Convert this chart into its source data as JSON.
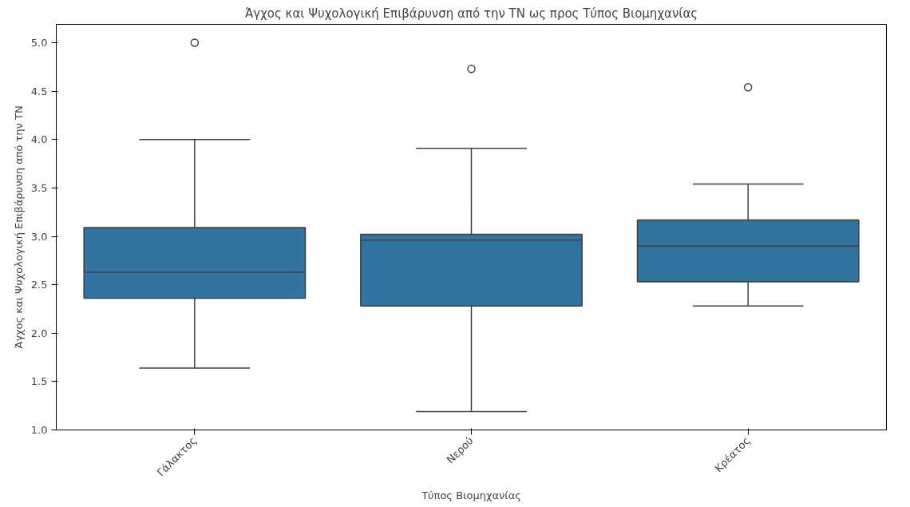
{
  "chart_data": {
    "type": "box",
    "title": "Άγχος και Ψυχολογική Επιβάρυνση από την ΤΝ ως προς Τύπος Βιομηχανίας",
    "xlabel": "Τύπος Βιομηχανίας",
    "ylabel": "Άγχος και Ψυχολογική Επιβάρυνση από την ΤΝ",
    "categories": [
      "Γάλακτος",
      "Νερού",
      "Κρέατος"
    ],
    "color": "#3274a1",
    "boxes": [
      {
        "low": 1.64,
        "q1": 2.36,
        "median": 2.63,
        "q3": 3.09,
        "high": 4.0,
        "outliers": [
          5.0
        ]
      },
      {
        "low": 1.19,
        "q1": 2.28,
        "median": 2.96,
        "q3": 3.02,
        "high": 3.91,
        "outliers": [
          4.73
        ]
      },
      {
        "low": 2.28,
        "q1": 2.53,
        "median": 2.9,
        "q3": 3.17,
        "high": 3.54,
        "outliers": [
          4.54
        ]
      }
    ],
    "ylim": [
      1.0,
      5.19
    ],
    "yticks": [
      {
        "value": 1.0,
        "label": "1.0"
      },
      {
        "value": 1.5,
        "label": "1.5"
      },
      {
        "value": 2.0,
        "label": "2.0"
      },
      {
        "value": 2.5,
        "label": "2.5"
      },
      {
        "value": 3.0,
        "label": "3.0"
      },
      {
        "value": 3.5,
        "label": "3.5"
      },
      {
        "value": 4.0,
        "label": "4.0"
      },
      {
        "value": 4.5,
        "label": "4.5"
      },
      {
        "value": 5.0,
        "label": "5.0"
      }
    ],
    "grid": false
  }
}
